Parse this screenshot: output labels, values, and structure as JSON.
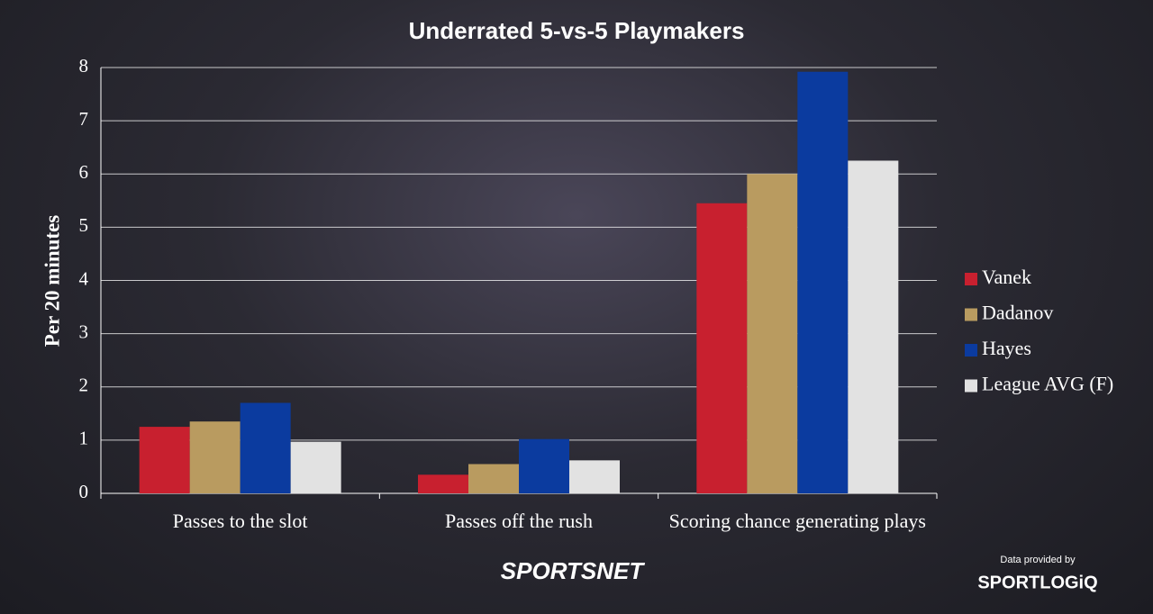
{
  "chart_data": {
    "type": "bar",
    "title": "Underrated 5-vs-5 Playmakers",
    "y_label": "Per 20 minutes",
    "categories": [
      "Passes to the slot",
      "Passes off the rush",
      "Scoring chance generating plays"
    ],
    "series": [
      {
        "name": "Vanek",
        "color": "#c8202f",
        "values": [
          1.25,
          0.35,
          5.45
        ]
      },
      {
        "name": "Dadanov",
        "color": "#b99b60",
        "values": [
          1.35,
          0.55,
          6.0
        ]
      },
      {
        "name": "Hayes",
        "color": "#0b3b9f",
        "values": [
          1.7,
          1.02,
          7.92
        ]
      },
      {
        "name": "League AVG (F)",
        "color": "#e2e2e2",
        "values": [
          0.97,
          0.62,
          6.25
        ]
      }
    ],
    "ylim": [
      0,
      8
    ],
    "yticks": [
      0,
      1,
      2,
      3,
      4,
      5,
      6,
      7,
      8
    ],
    "grid": true,
    "legend": "right"
  },
  "branding": {
    "logo": "SPORTSNET",
    "credit": "Data provided by",
    "credit_logo": "SPORTLOGiQ"
  }
}
